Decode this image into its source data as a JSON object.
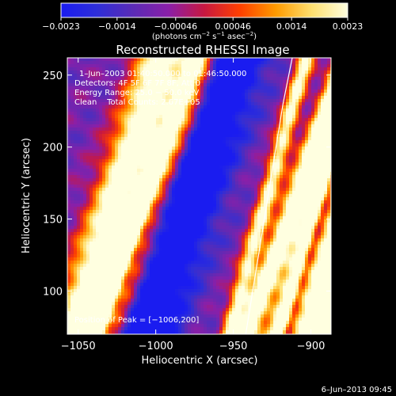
{
  "chart_data": {
    "type": "heatmap",
    "title": "Reconstructed RHESSI Image",
    "xlabel": "Heliocentric X (arcsec)",
    "ylabel": "Heliocentric Y (arcsec)",
    "xlim": [
      -1057,
      -887
    ],
    "ylim": [
      70,
      262
    ],
    "x_ticks": [
      -1050,
      -1000,
      -950,
      -900
    ],
    "x_tick_labels": [
      "−1050",
      "−1000",
      "−950",
      "−900"
    ],
    "y_ticks": [
      100,
      150,
      200,
      250
    ],
    "y_tick_labels": [
      "100",
      "150",
      "200",
      "250"
    ],
    "colorbar": {
      "range": [
        -0.0023,
        0.0023
      ],
      "ticks": [
        -0.0023,
        -0.0014,
        -0.00046,
        0.00046,
        0.0014,
        0.0023
      ],
      "tick_labels": [
        "−0.0023",
        "−0.0014",
        "−0.00046",
        "0.00046",
        "0.0014",
        "0.0023"
      ],
      "colors": [
        "#1a1cf0",
        "#2e2ed8",
        "#5a2bb6",
        "#8a1fa8",
        "#c81840",
        "#ff4000",
        "#ff9b00",
        "#ffe070",
        "#ffffe0"
      ],
      "units": {
        "prefix": "(photons cm",
        "exp1": "−2",
        "mid1": " s",
        "exp2": "−1",
        "mid2": " asec",
        "exp3": "−2",
        "suffix": ")"
      }
    },
    "info_lines": [
      "1–Jun–2003 01:40:50.000 to 01:46:50.000",
      "Detectors: 4F 5F 6F 7F 8F, Att 0",
      "Energy Range: 25.0 − 50.0 keV",
      "Clean    Total Counts: 2.67E+05"
    ],
    "peak_label": "Position of Peak = [−1006,200]",
    "peak_position": [
      -1006,
      200
    ],
    "limb_curve": {
      "x": [
        -942,
        -936,
        -930,
        -924,
        -918,
        -912
      ],
      "y": [
        70,
        110,
        150,
        190,
        230,
        262
      ],
      "color": "#ffffff"
    },
    "stripes": [
      {
        "x_at_ymin": -1053,
        "slope_x_per_y": 0.3,
        "width": 16,
        "peak": 0.85
      },
      {
        "x_at_ymin": -1040,
        "slope_x_per_y": 0.35,
        "width": 7,
        "peak": 0.93
      },
      {
        "x_at_ymin": -1026,
        "slope_x_per_y": 0.32,
        "width": 5,
        "peak": 0.3
      },
      {
        "x_at_ymin": -953,
        "slope_x_per_y": 0.26,
        "width": 6,
        "peak": 0.7
      },
      {
        "x_at_ymin": -941,
        "slope_x_per_y": 0.33,
        "width": 8,
        "peak": 0.86
      },
      {
        "x_at_ymin": -922,
        "slope_x_per_y": 0.28,
        "width": 8,
        "peak": 0.8
      },
      {
        "x_at_ymin": -903,
        "slope_x_per_y": 0.28,
        "width": 10,
        "peak": 0.88
      },
      {
        "x_at_ymin": -888,
        "slope_x_per_y": 0.28,
        "width": 11,
        "peak": 0.85
      }
    ],
    "troughs": [
      {
        "x_at_ymin": -1005,
        "slope_x_per_y": 0.3,
        "width": 20,
        "depth": 0.5
      },
      {
        "x_at_ymin": -915,
        "slope_x_per_y": 0.27,
        "width": 3,
        "depth": 0.3
      }
    ]
  },
  "footer": {
    "date": "6–Jun–2013 09:45"
  }
}
